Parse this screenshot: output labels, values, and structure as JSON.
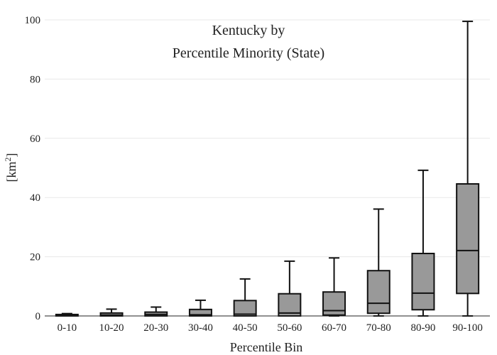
{
  "chart_data": {
    "type": "box",
    "title_lines": [
      "Kentucky  by",
      "Percentile Minority (State)"
    ],
    "xlabel": "Percentile Bin",
    "ylabel": "[km",
    "ylabel_sup": "2",
    "ylabel_end": "]",
    "ylim": [
      0,
      100
    ],
    "yticks": [
      0,
      20,
      40,
      60,
      80,
      100
    ],
    "grid": true,
    "categories": [
      "0-10",
      "10-20",
      "20-30",
      "30-40",
      "40-50",
      "50-60",
      "60-70",
      "70-80",
      "80-90",
      "90-100"
    ],
    "boxes": [
      {
        "min": 0,
        "q1": 0,
        "median": 0.1,
        "q3": 0.5,
        "max": 0.8
      },
      {
        "min": 0,
        "q1": 0,
        "median": 0.3,
        "q3": 1.0,
        "max": 2.3
      },
      {
        "min": 0,
        "q1": 0,
        "median": 0.5,
        "q3": 1.3,
        "max": 3.0
      },
      {
        "min": 0,
        "q1": 0,
        "median": 0.4,
        "q3": 2.2,
        "max": 5.3
      },
      {
        "min": 0,
        "q1": 0,
        "median": 0.6,
        "q3": 5.2,
        "max": 12.5
      },
      {
        "min": 0,
        "q1": 0,
        "median": 1.0,
        "q3": 7.5,
        "max": 18.5
      },
      {
        "min": 0,
        "q1": 0.3,
        "median": 1.8,
        "q3": 8.1,
        "max": 19.6
      },
      {
        "min": 0,
        "q1": 0.9,
        "median": 4.3,
        "q3": 15.3,
        "max": 36.1
      },
      {
        "min": 0,
        "q1": 2.1,
        "median": 7.7,
        "q3": 21.1,
        "max": 49.2
      },
      {
        "min": 0,
        "q1": 7.6,
        "median": 22.1,
        "q3": 44.6,
        "max": 99.5
      }
    ]
  }
}
